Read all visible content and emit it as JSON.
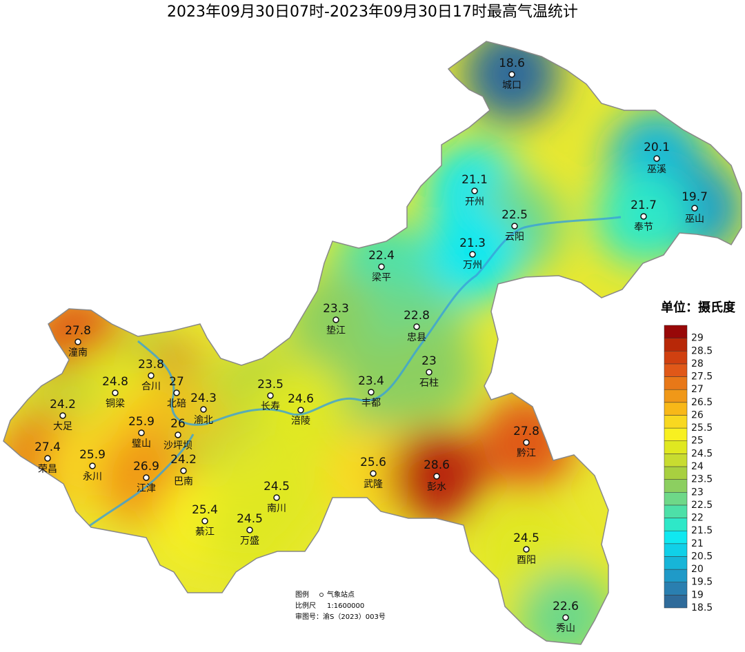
{
  "title": "2023年09月30日07时-2023年09月30日17时最高气温统计",
  "stations": [
    {
      "name": "城口",
      "value": 18.6
    },
    {
      "name": "巫溪",
      "value": 20.1
    },
    {
      "name": "开州",
      "value": 21.1
    },
    {
      "name": "巫山",
      "value": 19.7
    },
    {
      "name": "奉节",
      "value": 21.7
    },
    {
      "name": "云阳",
      "value": 22.5
    },
    {
      "name": "万州",
      "value": 21.3
    },
    {
      "name": "梁平",
      "value": 22.4
    },
    {
      "name": "垫江",
      "value": 23.3
    },
    {
      "name": "忠县",
      "value": 22.8
    },
    {
      "name": "潼南",
      "value": 27.8
    },
    {
      "name": "石柱",
      "value": 23
    },
    {
      "name": "合川",
      "value": 23.8
    },
    {
      "name": "北碚",
      "value": 27
    },
    {
      "name": "铜梁",
      "value": 24.8
    },
    {
      "name": "长寿",
      "value": 23.5
    },
    {
      "name": "丰都",
      "value": 23.4
    },
    {
      "name": "渝北",
      "value": 24.3
    },
    {
      "name": "大足",
      "value": 24.2
    },
    {
      "name": "涪陵",
      "value": 24.6
    },
    {
      "name": "璧山",
      "value": 25.9
    },
    {
      "name": "沙坪坝",
      "value": 26
    },
    {
      "name": "黔江",
      "value": 27.8
    },
    {
      "name": "荣昌",
      "value": 27.4
    },
    {
      "name": "永川",
      "value": 25.9
    },
    {
      "name": "巴南",
      "value": 24.2
    },
    {
      "name": "武隆",
      "value": 25.6
    },
    {
      "name": "彭水",
      "value": 28.6
    },
    {
      "name": "江津",
      "value": 26.9
    },
    {
      "name": "南川",
      "value": 24.5
    },
    {
      "name": "綦江",
      "value": 25.4
    },
    {
      "name": "万盛",
      "value": 24.5
    },
    {
      "name": "酉阳",
      "value": 24.5
    },
    {
      "name": "秀山",
      "value": 22.6
    }
  ],
  "legend": {
    "title": "单位：摄氏度",
    "levels": [
      18.5,
      19,
      19.5,
      20,
      20.5,
      21,
      21.5,
      22,
      22.5,
      23,
      23.5,
      24,
      24.5,
      25,
      25.5,
      26,
      26.5,
      27,
      27.5,
      28,
      28.5,
      29
    ],
    "colors": [
      "#2f6b9a",
      "#2a7fb0",
      "#1f9ac8",
      "#17b5d8",
      "#10d0e8",
      "#10e8f0",
      "#2ee8c8",
      "#4de0a8",
      "#6ed888",
      "#8ccf60",
      "#a8d040",
      "#c8dc30",
      "#e0e820",
      "#f8f020",
      "#f8d820",
      "#f8b818",
      "#f09818",
      "#e87818",
      "#e05818",
      "#d04010",
      "#b82808",
      "#980808"
    ]
  },
  "footer": {
    "legend_label": "图例",
    "station_label": "气象站点",
    "scale_label": "比例尺",
    "scale": "1:1600000",
    "approval": "审图号：渝S（2023）003号"
  }
}
